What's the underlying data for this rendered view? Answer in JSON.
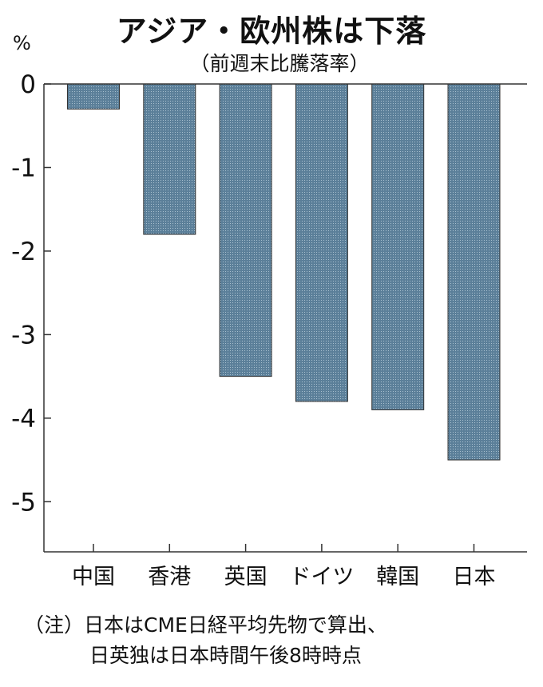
{
  "chart_data": {
    "type": "bar",
    "title": "アジア・欧州株は下落",
    "subtitle": "（前週末比騰落率）",
    "ylabel": "%",
    "categories": [
      "中国",
      "香港",
      "英国",
      "ドイツ",
      "韓国",
      "日本"
    ],
    "values": [
      -0.3,
      -1.8,
      -3.5,
      -3.8,
      -3.9,
      -4.5
    ],
    "ylim": [
      -5.6,
      0
    ],
    "yticks": [
      "0",
      "-1",
      "-2",
      "-3",
      "-4",
      "-5"
    ],
    "grid": false,
    "bar_color": "#5b7f99",
    "notes": [
      "（注）日本はCME日経平均先物で算出、",
      "日英独は日本時間午後8時時点"
    ]
  }
}
